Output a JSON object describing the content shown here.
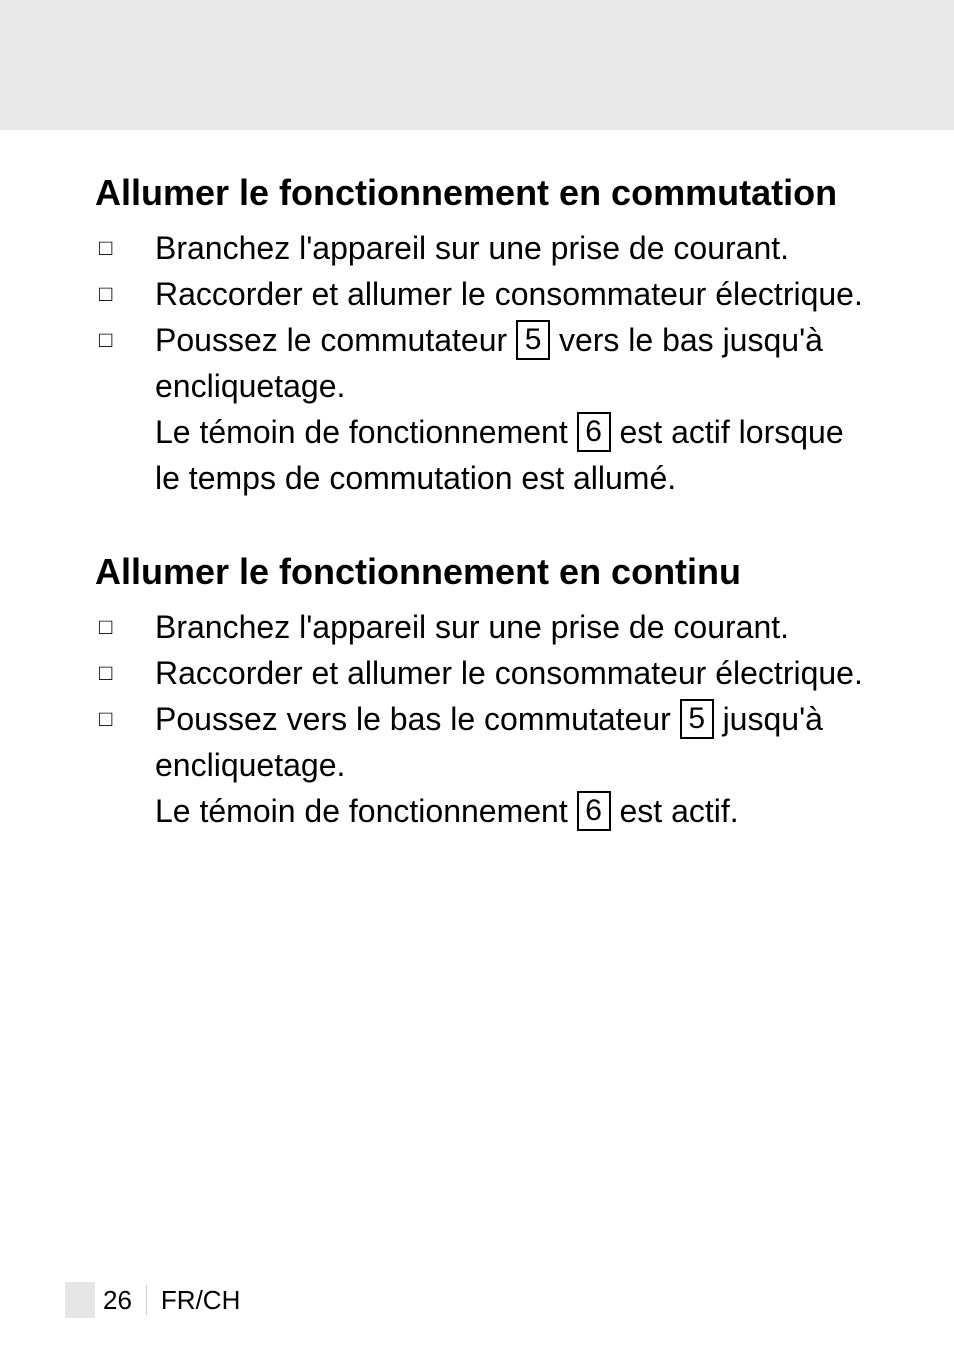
{
  "sections": [
    {
      "heading": "Allumer le fonctionnement en commutation",
      "items": [
        {
          "parts": [
            {
              "t": "text",
              "v": "Branchez l'appareil sur une prise de courant."
            }
          ]
        },
        {
          "parts": [
            {
              "t": "text",
              "v": "Raccorder et allumer le consommateur électrique."
            }
          ]
        },
        {
          "parts": [
            {
              "t": "text",
              "v": "Poussez le commutateur "
            },
            {
              "t": "box",
              "v": "5"
            },
            {
              "t": "text",
              "v": " vers le bas jusqu'à encliquetage."
            },
            {
              "t": "br"
            },
            {
              "t": "text",
              "v": "Le témoin de fonctionnement "
            },
            {
              "t": "box",
              "v": "6"
            },
            {
              "t": "text",
              "v": " est actif lorsque le temps de commutation est allumé."
            }
          ]
        }
      ]
    },
    {
      "heading": "Allumer le fonctionnement en continu",
      "items": [
        {
          "parts": [
            {
              "t": "text",
              "v": "Branchez l'appareil sur une prise de courant."
            }
          ]
        },
        {
          "parts": [
            {
              "t": "text",
              "v": "Raccorder et allumer le consommateur électrique."
            }
          ]
        },
        {
          "parts": [
            {
              "t": "text",
              "v": "Poussez vers le bas le commutateur "
            },
            {
              "t": "box",
              "v": "5"
            },
            {
              "t": "text",
              "v": " jusqu'à encliquetage."
            },
            {
              "t": "br"
            },
            {
              "t": "text",
              "v": "Le témoin de fonctionnement "
            },
            {
              "t": "box",
              "v": "6"
            },
            {
              "t": "text",
              "v": " est actif."
            }
          ]
        }
      ]
    }
  ],
  "footer": {
    "page": "26",
    "locale": "FR/CH"
  },
  "bullet_glyph": "□"
}
